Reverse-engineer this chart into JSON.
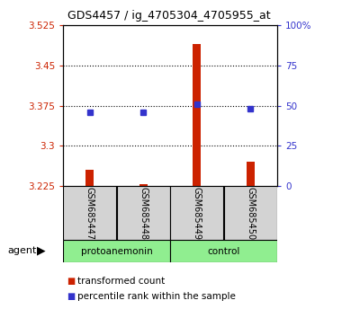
{
  "title": "GDS4457 / ig_4705304_4705955_at",
  "samples": [
    "GSM685447",
    "GSM685448",
    "GSM685449",
    "GSM685450"
  ],
  "bar_bottom": 3.225,
  "red_values": [
    3.255,
    3.228,
    3.49,
    3.27
  ],
  "blue_values": [
    46,
    46,
    51,
    48
  ],
  "ylim_left": [
    3.225,
    3.525
  ],
  "ylim_right": [
    0,
    100
  ],
  "yticks_left": [
    3.225,
    3.3,
    3.375,
    3.45,
    3.525
  ],
  "yticks_right": [
    0,
    25,
    50,
    75,
    100
  ],
  "ytick_labels_right": [
    "0",
    "25",
    "50",
    "75",
    "100%"
  ],
  "hlines": [
    3.3,
    3.375,
    3.45
  ],
  "plot_bg_color": "#ffffff",
  "bar_bg_color": "#d3d3d3",
  "group_box_color": "#90ee90",
  "left_axis_color": "#cc2200",
  "right_axis_color": "#3333cc",
  "red_bar_color": "#cc2200",
  "blue_dot_color": "#3333cc",
  "group1_label": "protoanemonin",
  "group2_label": "control",
  "agent_label": "agent",
  "legend1": "transformed count",
  "legend2": "percentile rank within the sample"
}
